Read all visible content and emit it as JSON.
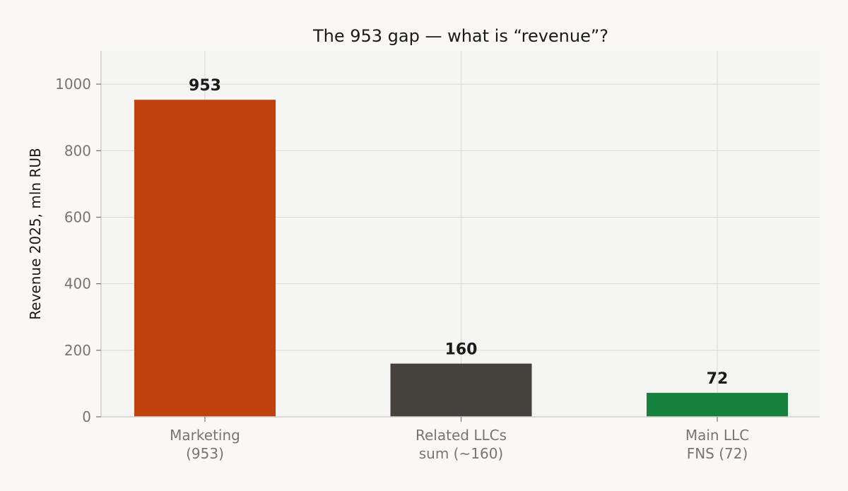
{
  "chart_data": {
    "type": "bar",
    "title": "The 953 gap — what is “revenue”?",
    "xlabel": "",
    "ylabel": "Revenue 2025, mln RUB",
    "ylim": [
      0,
      1100
    ],
    "yticks": [
      0,
      200,
      400,
      600,
      800,
      1000
    ],
    "grid": true,
    "categories": [
      [
        "Marketing",
        "(953)"
      ],
      [
        "Related LLCs",
        "sum (~160)"
      ],
      [
        "Main LLC",
        "FNS (72)"
      ]
    ],
    "values": [
      953,
      160,
      72
    ],
    "data_labels": [
      "953",
      "160",
      "72"
    ],
    "colors": [
      "#c0410c",
      "#45423d",
      "#16803d"
    ]
  }
}
